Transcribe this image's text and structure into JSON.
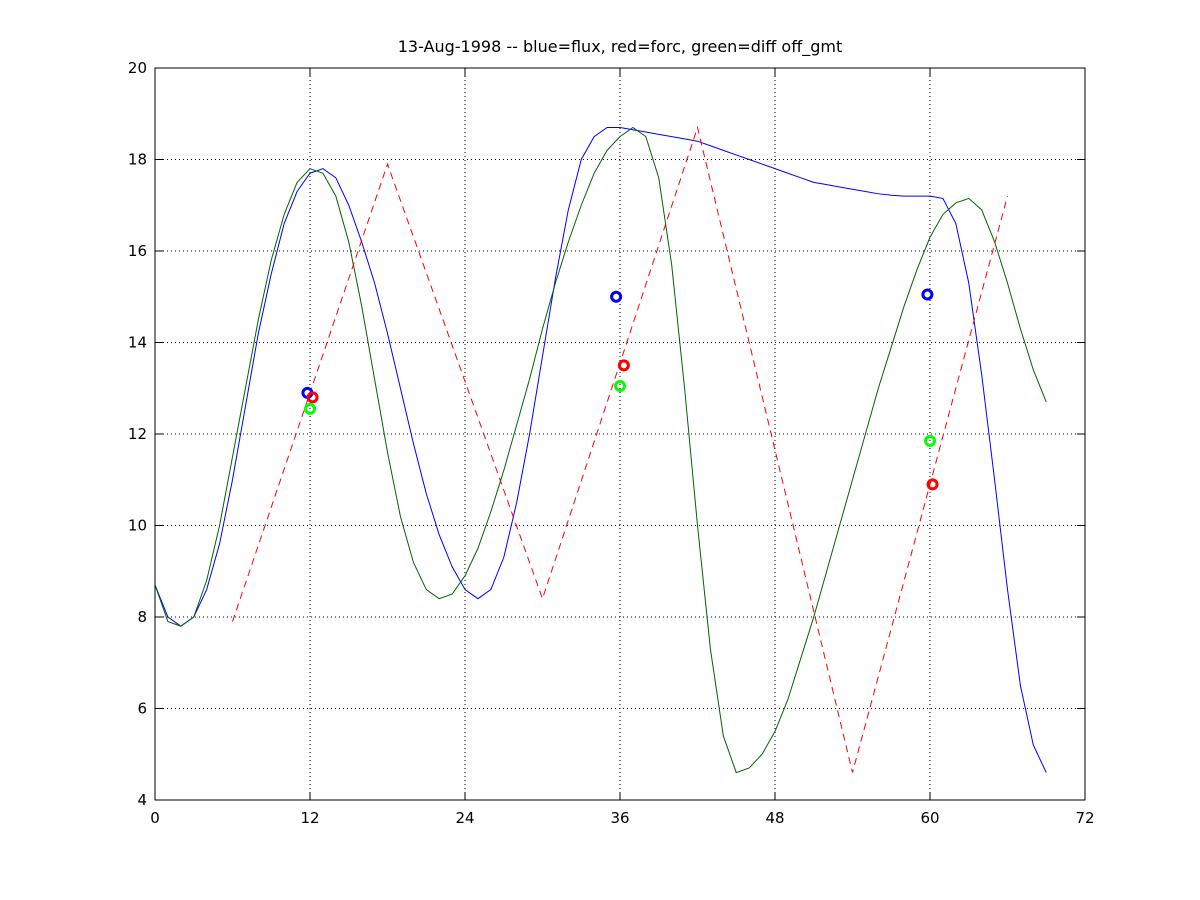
{
  "chart_data": {
    "type": "line",
    "title": "13-Aug-1998 -- blue=flux, red=forc, green=diff off_gmt",
    "xlabel": "",
    "ylabel": "",
    "xlim": [
      0,
      72
    ],
    "ylim": [
      4,
      20
    ],
    "x_ticks": [
      0,
      12,
      24,
      36,
      48,
      60,
      72
    ],
    "y_ticks": [
      4,
      6,
      8,
      10,
      12,
      14,
      16,
      18,
      20
    ],
    "grid": true,
    "series": [
      {
        "color": "#0000ff",
        "style": "solid",
        "points": [
          [
            0,
            8.7
          ],
          [
            1,
            8.0
          ],
          [
            2,
            7.8
          ],
          [
            3,
            8.0
          ],
          [
            4,
            8.6
          ],
          [
            5,
            9.6
          ],
          [
            6,
            11.0
          ],
          [
            7,
            12.6
          ],
          [
            8,
            14.2
          ],
          [
            9,
            15.5
          ],
          [
            10,
            16.6
          ],
          [
            11,
            17.3
          ],
          [
            12,
            17.7
          ],
          [
            13,
            17.8
          ],
          [
            14,
            17.6
          ],
          [
            15,
            17.0
          ],
          [
            16,
            16.2
          ],
          [
            17,
            15.3
          ],
          [
            18,
            14.2
          ],
          [
            19,
            13.0
          ],
          [
            20,
            11.8
          ],
          [
            21,
            10.7
          ],
          [
            22,
            9.8
          ],
          [
            23,
            9.1
          ],
          [
            24,
            8.6
          ],
          [
            25,
            8.4
          ],
          [
            26,
            8.6
          ],
          [
            27,
            9.3
          ],
          [
            28,
            10.5
          ],
          [
            29,
            12.0
          ],
          [
            30,
            13.7
          ],
          [
            31,
            15.4
          ],
          [
            32,
            16.9
          ],
          [
            33,
            18.0
          ],
          [
            34,
            18.5
          ],
          [
            35,
            18.7
          ],
          [
            36,
            18.7
          ],
          [
            37,
            18.65
          ],
          [
            38,
            18.6
          ],
          [
            39,
            18.55
          ],
          [
            40,
            18.5
          ],
          [
            41,
            18.45
          ],
          [
            42,
            18.4
          ],
          [
            43,
            18.3
          ],
          [
            44,
            18.2
          ],
          [
            45,
            18.1
          ],
          [
            46,
            18.0
          ],
          [
            47,
            17.9
          ],
          [
            48,
            17.8
          ],
          [
            49,
            17.7
          ],
          [
            50,
            17.6
          ],
          [
            51,
            17.5
          ],
          [
            52,
            17.45
          ],
          [
            53,
            17.4
          ],
          [
            54,
            17.35
          ],
          [
            55,
            17.3
          ],
          [
            56,
            17.25
          ],
          [
            57,
            17.22
          ],
          [
            58,
            17.2
          ],
          [
            59,
            17.2
          ],
          [
            60,
            17.2
          ],
          [
            61,
            17.15
          ],
          [
            62,
            16.6
          ],
          [
            63,
            15.3
          ],
          [
            64,
            13.3
          ],
          [
            65,
            11.0
          ],
          [
            66,
            8.6
          ],
          [
            67,
            6.5
          ],
          [
            68,
            5.2
          ],
          [
            69,
            4.6
          ]
        ]
      },
      {
        "color": "#006400",
        "style": "solid",
        "points": [
          [
            0,
            8.7
          ],
          [
            1,
            7.9
          ],
          [
            2,
            7.8
          ],
          [
            3,
            8.0
          ],
          [
            4,
            8.8
          ],
          [
            5,
            10.0
          ],
          [
            6,
            11.5
          ],
          [
            7,
            13.0
          ],
          [
            8,
            14.5
          ],
          [
            9,
            15.8
          ],
          [
            10,
            16.8
          ],
          [
            11,
            17.5
          ],
          [
            12,
            17.8
          ],
          [
            13,
            17.7
          ],
          [
            14,
            17.2
          ],
          [
            15,
            16.2
          ],
          [
            16,
            14.8
          ],
          [
            17,
            13.2
          ],
          [
            18,
            11.6
          ],
          [
            19,
            10.2
          ],
          [
            20,
            9.2
          ],
          [
            21,
            8.6
          ],
          [
            22,
            8.4
          ],
          [
            23,
            8.5
          ],
          [
            24,
            8.9
          ],
          [
            25,
            9.5
          ],
          [
            26,
            10.3
          ],
          [
            27,
            11.2
          ],
          [
            28,
            12.2
          ],
          [
            29,
            13.2
          ],
          [
            30,
            14.3
          ],
          [
            31,
            15.3
          ],
          [
            32,
            16.2
          ],
          [
            33,
            17.0
          ],
          [
            34,
            17.7
          ],
          [
            35,
            18.2
          ],
          [
            36,
            18.5
          ],
          [
            37,
            18.7
          ],
          [
            38,
            18.5
          ],
          [
            39,
            17.6
          ],
          [
            40,
            15.7
          ],
          [
            41,
            13.0
          ],
          [
            42,
            10.0
          ],
          [
            43,
            7.3
          ],
          [
            44,
            5.4
          ],
          [
            45,
            4.6
          ],
          [
            46,
            4.7
          ],
          [
            47,
            5.0
          ],
          [
            48,
            5.5
          ],
          [
            49,
            6.2
          ],
          [
            50,
            7.1
          ],
          [
            51,
            8.0
          ],
          [
            52,
            9.0
          ],
          [
            53,
            10.0
          ],
          [
            54,
            11.0
          ],
          [
            55,
            12.0
          ],
          [
            56,
            13.0
          ],
          [
            57,
            13.9
          ],
          [
            58,
            14.8
          ],
          [
            59,
            15.6
          ],
          [
            60,
            16.3
          ],
          [
            61,
            16.8
          ],
          [
            62,
            17.05
          ],
          [
            63,
            17.15
          ],
          [
            64,
            16.9
          ],
          [
            65,
            16.2
          ],
          [
            66,
            15.3
          ],
          [
            67,
            14.3
          ],
          [
            68,
            13.4
          ],
          [
            69,
            12.7
          ]
        ]
      },
      {
        "color": "#ff0000",
        "style": "dashed",
        "points": [
          [
            6,
            7.9
          ],
          [
            18,
            17.9
          ],
          [
            30,
            8.4
          ],
          [
            42,
            18.7
          ],
          [
            54,
            4.6
          ],
          [
            66,
            17.2
          ]
        ]
      }
    ],
    "markers": [
      {
        "color": "#0000ff",
        "points": [
          [
            11.8,
            12.9
          ],
          [
            35.7,
            15.0
          ],
          [
            59.8,
            15.05
          ]
        ]
      },
      {
        "color": "#ff0000",
        "points": [
          [
            12.2,
            12.8
          ],
          [
            36.3,
            13.5
          ],
          [
            60.2,
            10.9
          ]
        ]
      },
      {
        "color": "#00ff00",
        "points": [
          [
            12.0,
            12.55
          ],
          [
            36.0,
            13.05
          ],
          [
            60.0,
            11.85
          ]
        ]
      }
    ]
  }
}
